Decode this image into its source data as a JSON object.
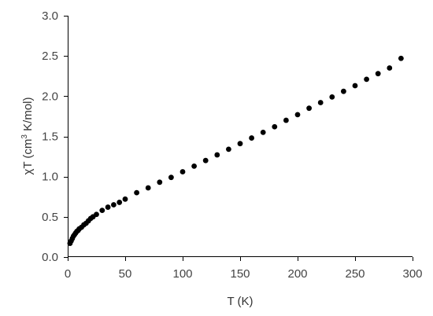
{
  "chart_data": {
    "type": "scatter",
    "xlabel": "T (K)",
    "ylabel_parts": {
      "before": "χT (cm",
      "superscript": "3",
      "after": " K/mol)"
    },
    "xlim": [
      0,
      300
    ],
    "ylim": [
      0,
      3.0
    ],
    "xticks": [
      0,
      50,
      100,
      150,
      200,
      250,
      300
    ],
    "xtick_labels": [
      "0",
      "50",
      "100",
      "150",
      "200",
      "250",
      "300"
    ],
    "yticks": [
      0,
      0.5,
      1.0,
      1.5,
      2.0,
      2.5,
      3.0
    ],
    "ytick_labels": [
      "0.0",
      "0.5",
      "1.0",
      "1.5",
      "2.0",
      "2.5",
      "3.0"
    ],
    "grid": false,
    "marker_color": "#000000",
    "series": [
      {
        "x": [
          2,
          3,
          4,
          5,
          6,
          7,
          8,
          9,
          10,
          12,
          14,
          16,
          18,
          20,
          22,
          25,
          30,
          35,
          40,
          45,
          50,
          60,
          70,
          80,
          90,
          100,
          110,
          120,
          130,
          140,
          150,
          160,
          170,
          180,
          190,
          200,
          210,
          220,
          230,
          240,
          250,
          260,
          270,
          280,
          290
        ],
        "y": [
          0.17,
          0.2,
          0.23,
          0.26,
          0.28,
          0.3,
          0.32,
          0.33,
          0.35,
          0.37,
          0.4,
          0.42,
          0.45,
          0.48,
          0.5,
          0.53,
          0.58,
          0.62,
          0.65,
          0.68,
          0.72,
          0.8,
          0.86,
          0.93,
          0.99,
          1.06,
          1.13,
          1.2,
          1.27,
          1.34,
          1.41,
          1.48,
          1.55,
          1.62,
          1.7,
          1.77,
          1.85,
          1.92,
          1.99,
          2.06,
          2.13,
          2.21,
          2.28,
          2.35,
          2.47
        ]
      }
    ]
  }
}
